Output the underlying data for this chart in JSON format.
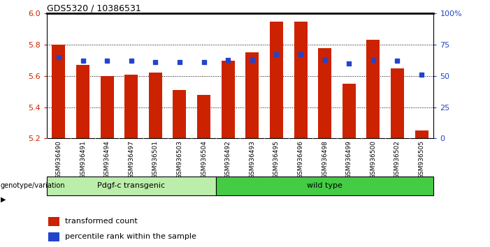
{
  "title": "GDS5320 / 10386531",
  "samples": [
    "GSM936490",
    "GSM936491",
    "GSM936494",
    "GSM936497",
    "GSM936501",
    "GSM936503",
    "GSM936504",
    "GSM936492",
    "GSM936493",
    "GSM936495",
    "GSM936496",
    "GSM936498",
    "GSM936499",
    "GSM936500",
    "GSM936502",
    "GSM936505"
  ],
  "red_values": [
    5.8,
    5.67,
    5.6,
    5.61,
    5.62,
    5.51,
    5.48,
    5.7,
    5.75,
    5.95,
    5.95,
    5.78,
    5.55,
    5.83,
    5.65,
    5.25
  ],
  "blue_values": [
    65,
    62,
    62,
    62,
    61,
    61,
    61,
    63,
    63,
    67,
    67,
    63,
    60,
    63,
    62,
    51
  ],
  "ylim_left": [
    5.2,
    6.0
  ],
  "ylim_right": [
    0,
    100
  ],
  "yticks_left": [
    5.2,
    5.4,
    5.6,
    5.8,
    6.0
  ],
  "yticks_right": [
    0,
    25,
    50,
    75,
    100
  ],
  "ytick_labels_right": [
    "0",
    "25",
    "50",
    "75",
    "100%"
  ],
  "group1_label": "Pdgf-c transgenic",
  "group2_label": "wild type",
  "group1_count": 7,
  "group2_count": 9,
  "genotype_label": "genotype/variation",
  "legend_red": "transformed count",
  "legend_blue": "percentile rank within the sample",
  "bar_color": "#cc2200",
  "blue_color": "#2244cc",
  "group1_bg": "#bbeeaa",
  "group2_bg": "#44cc44",
  "bar_width": 0.55,
  "bar_bottom": 5.2,
  "blue_marker_size": 5,
  "background_color": "#ffffff",
  "plot_bg": "#ffffff",
  "tick_label_color_left": "#cc2200",
  "tick_label_color_right": "#2244cc",
  "xtick_bg": "#cccccc",
  "grid_color": "#000000",
  "grid_linestyle": ":",
  "grid_linewidth": 0.7
}
